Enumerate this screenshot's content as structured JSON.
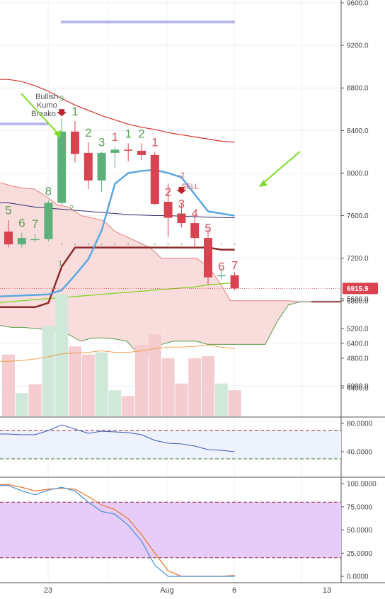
{
  "chart_data": {
    "type": "candlestick",
    "x_ticks": [
      "23",
      "Aug",
      "6",
      "13"
    ],
    "price_axis": {
      "ticks": [
        "6000.0",
        "6400.0",
        "6800.0",
        "7200.0",
        "7600.0",
        "8000.0",
        "8400.0",
        "8800.0",
        "9200.0",
        "9600.0"
      ],
      "ylim": [
        5620,
        9680
      ],
      "current_price_label": "6915.9",
      "current_price": 6915.9
    },
    "candles": [
      {
        "o": 7450,
        "h": 7560,
        "l": 7300,
        "c": 7330
      },
      {
        "o": 7330,
        "h": 7440,
        "l": 7300,
        "c": 7390
      },
      {
        "o": 7370,
        "h": 7430,
        "l": 7350,
        "c": 7380
      },
      {
        "o": 7380,
        "h": 7740,
        "l": 7360,
        "c": 7720
      },
      {
        "o": 7720,
        "h": 8510,
        "l": 7700,
        "c": 8390
      },
      {
        "o": 8390,
        "h": 8490,
        "l": 8100,
        "c": 8180
      },
      {
        "o": 8190,
        "h": 8290,
        "l": 7850,
        "c": 7930
      },
      {
        "o": 7930,
        "h": 8200,
        "l": 7820,
        "c": 8190
      },
      {
        "o": 8190,
        "h": 8250,
        "l": 8050,
        "c": 8220
      },
      {
        "o": 8220,
        "h": 8280,
        "l": 8110,
        "c": 8210
      },
      {
        "o": 8210,
        "h": 8280,
        "l": 8120,
        "c": 8170
      },
      {
        "o": 8170,
        "h": 8200,
        "l": 7700,
        "c": 7710
      },
      {
        "o": 7730,
        "h": 7900,
        "l": 7400,
        "c": 7580
      },
      {
        "o": 7620,
        "h": 7720,
        "l": 7490,
        "c": 7530
      },
      {
        "o": 7530,
        "h": 7600,
        "l": 7300,
        "c": 7390
      },
      {
        "o": 7390,
        "h": 7470,
        "l": 6950,
        "c": 7020
      },
      {
        "o": 7030,
        "h": 7110,
        "l": 7000,
        "c": 7040
      },
      {
        "o": 7040,
        "h": 7070,
        "l": 6900,
        "c": 6915.9
      }
    ],
    "td_counts": [
      {
        "i": 0,
        "text": "5",
        "color": "green"
      },
      {
        "i": 1,
        "text": "6",
        "color": "green"
      },
      {
        "i": 2,
        "text": "7",
        "color": "green"
      },
      {
        "i": 3,
        "text": "8",
        "color": "green"
      },
      {
        "i": 4,
        "text": "9",
        "color": "green",
        "small": true
      },
      {
        "i": 5,
        "text": "1",
        "color": "green"
      },
      {
        "i": 6,
        "text": "2",
        "color": "green"
      },
      {
        "i": 7,
        "text": "3",
        "color": "green"
      },
      {
        "i": 8,
        "text": "1",
        "color": "red"
      },
      {
        "i": 9,
        "text": "1",
        "color": "green"
      },
      {
        "i": 10,
        "text": "2",
        "color": "green"
      },
      {
        "i": 11,
        "text": "1",
        "color": "red"
      },
      {
        "i": 12,
        "text": "2",
        "color": "red"
      },
      {
        "i": 13,
        "text": "3",
        "color": "red"
      },
      {
        "i": 14,
        "text": "4",
        "color": "red"
      },
      {
        "i": 15,
        "text": "5",
        "color": "red"
      },
      {
        "i": 16,
        "text": "6",
        "color": "red"
      },
      {
        "i": 17,
        "text": "7",
        "color": "red"
      }
    ],
    "annotations": {
      "bullish_text": [
        "Bullish",
        "Kumo",
        "Breako"
      ],
      "sell_count": "-2",
      "sell_text": "SELL",
      "small_1": "1",
      "small_2": "2"
    },
    "volume": {
      "ylim": [
        4060,
        5780
      ],
      "ticks": [
        "4400.0",
        "4800.0",
        "5200.0",
        "5600.0"
      ],
      "values": [
        4850,
        4330,
        4450,
        5230,
        5660,
        4960,
        4850,
        4880,
        4370,
        4290,
        4980,
        5120,
        4800,
        4460,
        4800,
        4830,
        4460,
        4370
      ],
      "directions": [
        "down",
        "up",
        "down",
        "up",
        "up",
        "down",
        "down",
        "up",
        "up",
        "down",
        "down",
        "down",
        "down",
        "down",
        "down",
        "down",
        "up",
        "down"
      ],
      "ma": [
        4760,
        4770,
        4790,
        4820,
        4860,
        4870,
        4880,
        4900,
        4880,
        4880,
        4900,
        4930,
        4950,
        4950,
        4960,
        4980,
        4950,
        4930
      ]
    },
    "rsi": {
      "ylim": [
        25,
        90
      ],
      "ticks": [
        "40.0000",
        "80.0000"
      ],
      "upper": 70,
      "lower": 30,
      "values": [
        65,
        64,
        64,
        70,
        78,
        72,
        66,
        69,
        68,
        67,
        64,
        56,
        52,
        51,
        48,
        43,
        42,
        40
      ]
    },
    "stoch": {
      "ylim": [
        -5,
        105
      ],
      "ticks": [
        "0.0000",
        "25.0000",
        "50.0000",
        "75.0000",
        "100.0000"
      ],
      "upper": 80,
      "lower": 20,
      "k": [
        98,
        92,
        88,
        93,
        96,
        92,
        80,
        70,
        67,
        55,
        38,
        12,
        0,
        0,
        0,
        0,
        0,
        0
      ],
      "d": [
        99,
        96,
        92,
        94,
        95,
        94,
        86,
        77,
        72,
        62,
        45,
        25,
        6,
        0,
        0,
        0,
        0,
        1
      ]
    },
    "ichimoku": {
      "tenkan": [
        null,
        null,
        null,
        6860,
        6900,
        7040,
        7190,
        7460,
        7900,
        8000,
        8020,
        8030,
        8000,
        7960,
        7800,
        7640,
        7620,
        7600
      ],
      "kijun": [
        6740,
        6740,
        6740,
        6780,
        7120,
        7300,
        7300,
        7300,
        7300,
        7300,
        7300,
        7300,
        7300,
        7300,
        7300,
        7300,
        7280,
        7280
      ],
      "red_ma": [
        8880,
        8860,
        8820,
        8770,
        8700,
        8640,
        8590,
        8540,
        8500,
        8460,
        8430,
        8410,
        8380,
        8360,
        8340,
        8320,
        8300,
        8290
      ],
      "navy_ma": [
        7720,
        7700,
        7680,
        7670,
        7660,
        7650,
        7640,
        7630,
        7620,
        7610,
        7605,
        7600,
        7600,
        7595,
        7590,
        7585,
        7582,
        7580
      ],
      "green_ma": [
        6790,
        6800,
        6810,
        6820,
        6830,
        6840,
        6850,
        6860,
        6870,
        6880,
        6890,
        6900,
        6910,
        6920,
        6930,
        6950,
        6960,
        6970
      ],
      "cloud_top": [
        7910,
        7880,
        7860,
        7850,
        7780,
        7700,
        7680,
        7600,
        7580,
        7550,
        7450,
        7400,
        7350,
        7300,
        7200,
        7200,
        7200,
        7200,
        7130,
        6980,
        6800,
        6800,
        6800,
        6800,
        6800,
        6800,
        6790,
        6790
      ],
      "cloud_bottom": [
        6570,
        6550,
        6550,
        6540,
        6530,
        6510,
        6480,
        6420,
        6450,
        6450,
        6440,
        6420,
        6300,
        6300,
        6390,
        6420,
        6420,
        6420,
        6390,
        6390,
        6390,
        6390,
        6390,
        6390,
        6600,
        6760,
        6790,
        6790
      ]
    }
  }
}
